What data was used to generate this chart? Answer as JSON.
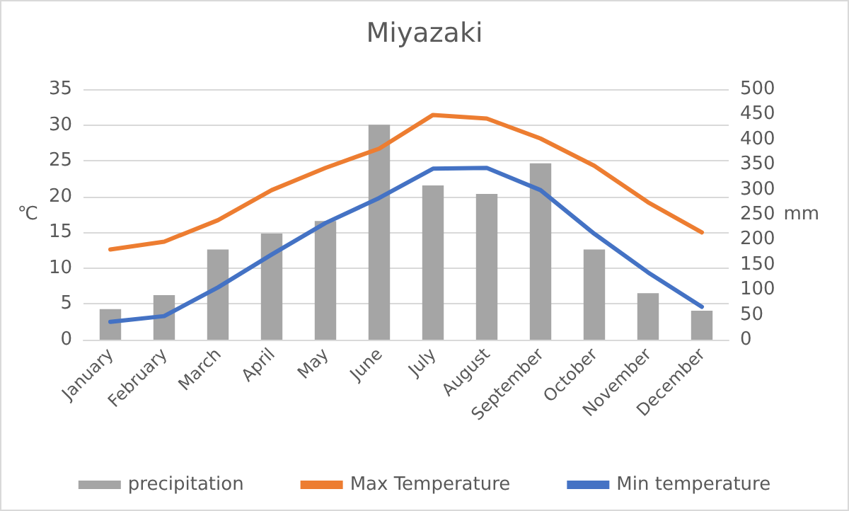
{
  "chart_data": {
    "type": "bar",
    "title": "Miyazaki",
    "ylabel": "℃",
    "y2label": "mm",
    "categories": [
      "January",
      "February",
      "March",
      "April",
      "May",
      "June",
      "July",
      "August",
      "September",
      "October",
      "November",
      "December"
    ],
    "series": [
      {
        "name": "precipitation",
        "axis": "y2",
        "color": "#a5a5a5",
        "values": [
          61,
          89,
          180,
          212,
          237,
          429,
          308,
          291,
          352,
          180,
          93,
          58
        ]
      },
      {
        "name": "Max Temperature",
        "type": "line",
        "color": "#ed7d31",
        "values": [
          12.6,
          13.7,
          16.7,
          20.9,
          24.0,
          26.7,
          31.4,
          30.9,
          28.1,
          24.3,
          19.2,
          15.0
        ]
      },
      {
        "name": "Min temperature",
        "type": "line",
        "color": "#4472c4",
        "values": [
          2.5,
          3.3,
          7.3,
          11.9,
          16.3,
          19.8,
          23.9,
          24.0,
          20.9,
          14.8,
          9.4,
          4.6
        ]
      }
    ],
    "ylim": [
      0,
      35
    ],
    "yticks": [
      0,
      5,
      10,
      15,
      20,
      25,
      30,
      35
    ],
    "y2lim": [
      0,
      500
    ],
    "y2ticks": [
      0,
      50,
      100,
      150,
      200,
      250,
      300,
      350,
      400,
      450,
      500
    ],
    "grid": "y",
    "legend": "bottom",
    "marker": "none",
    "line_style": "solid"
  }
}
